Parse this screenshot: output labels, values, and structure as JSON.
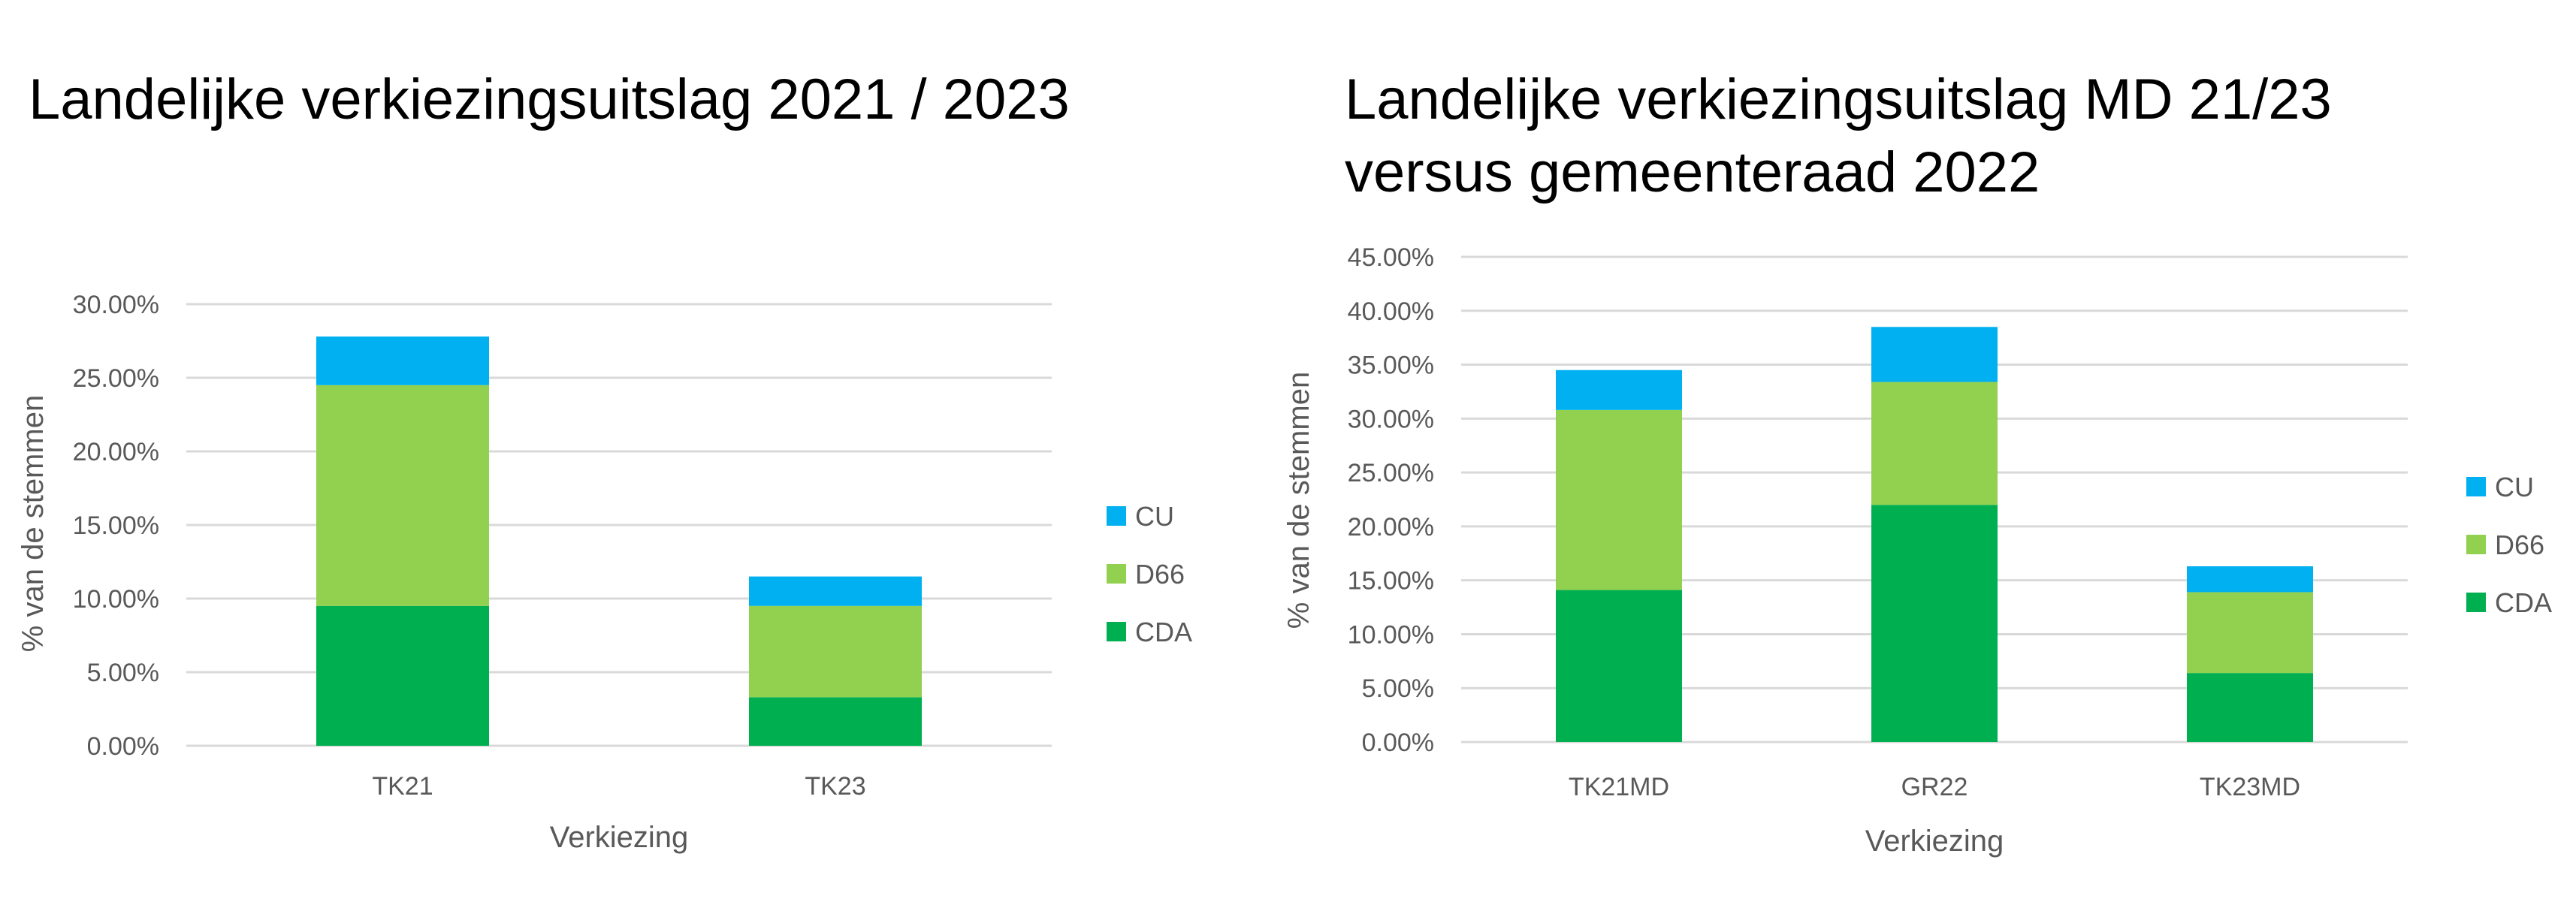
{
  "chart_data": [
    {
      "type": "bar",
      "stacked": true,
      "title": "Landelijke verkiezingsuitslag 2021 / 2023",
      "xlabel": "Verkiezing",
      "ylabel": "% van de stemmen",
      "categories": [
        "TK21",
        "TK23"
      ],
      "ylim": [
        0,
        30
      ],
      "yticks": [
        "0.00%",
        "5.00%",
        "10.00%",
        "15.00%",
        "20.00%",
        "25.00%",
        "30.00%"
      ],
      "grid": true,
      "legend_position": "right",
      "series": [
        {
          "name": "CDA",
          "color": "#00b050",
          "values": [
            9.5,
            3.3
          ]
        },
        {
          "name": "D66",
          "color": "#92d050",
          "values": [
            15.0,
            6.2
          ]
        },
        {
          "name": "CU",
          "color": "#00b0f0",
          "values": [
            3.3,
            2.0
          ]
        }
      ]
    },
    {
      "type": "bar",
      "stacked": true,
      "title": [
        "Landelijke verkiezingsuitslag MD 21/23",
        "versus gemeenteraad 2022"
      ],
      "xlabel": "Verkiezing",
      "ylabel": "% van de stemmen",
      "categories": [
        "TK21MD",
        "GR22",
        "TK23MD"
      ],
      "ylim": [
        0,
        45
      ],
      "yticks": [
        "0.00%",
        "5.00%",
        "10.00%",
        "15.00%",
        "20.00%",
        "25.00%",
        "30.00%",
        "35.00%",
        "40.00%",
        "45.00%"
      ],
      "grid": true,
      "legend_position": "right",
      "series": [
        {
          "name": "CDA",
          "color": "#00b050",
          "values": [
            14.1,
            22.0,
            6.4
          ]
        },
        {
          "name": "D66",
          "color": "#92d050",
          "values": [
            16.7,
            11.4,
            7.5
          ]
        },
        {
          "name": "CU",
          "color": "#00b0f0",
          "values": [
            3.7,
            5.1,
            2.4
          ]
        }
      ]
    }
  ]
}
